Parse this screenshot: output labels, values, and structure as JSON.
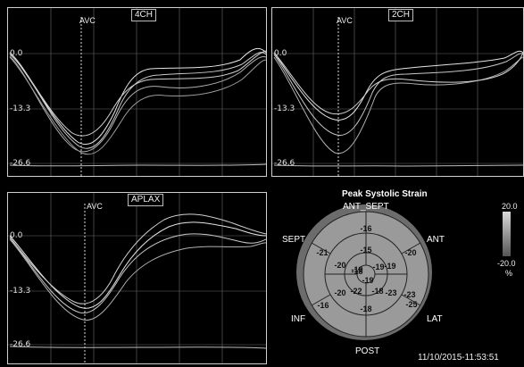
{
  "panels": {
    "four_ch": {
      "title": "4CH",
      "avc": "AVC",
      "y_labels": [
        "0.0",
        "-13.3",
        "-26.6"
      ]
    },
    "two_ch": {
      "title": "2CH",
      "avc": "AVC",
      "y_labels": [
        "0.0",
        "-13.3",
        "-26.6"
      ]
    },
    "aplax": {
      "title": "APLAX",
      "avc": "AVC",
      "y_labels": [
        "0.0",
        "-13.3",
        "-26.6"
      ]
    }
  },
  "bullseye": {
    "title": "Peak Systolic Strain",
    "labels": {
      "ant_sept": "ANT_SEPT",
      "ant": "ANT",
      "sept": "SEPT",
      "inf": "INF",
      "lat": "LAT",
      "post": "POST"
    },
    "values": {
      "basal": [
        "-16",
        "-20",
        "-23",
        "-25",
        "-16",
        "-21"
      ],
      "mid": [
        "-15",
        "-19",
        "-23",
        "-18",
        "-20",
        "-20"
      ],
      "apical": [
        "-19",
        "-19",
        "-18",
        "-18"
      ],
      "apex": "-19",
      "extra": [
        "-15",
        "-22",
        "-18"
      ]
    }
  },
  "scale": {
    "max": "20.0",
    "min": "-20.0",
    "unit": "%"
  },
  "timestamp": "11/10/2015-11:53:51",
  "colors": {
    "background": "#000000",
    "grid": "#bfbfbf",
    "bull_fill": "#9a9a9a",
    "bull_ring": "#6c6c6c"
  }
}
